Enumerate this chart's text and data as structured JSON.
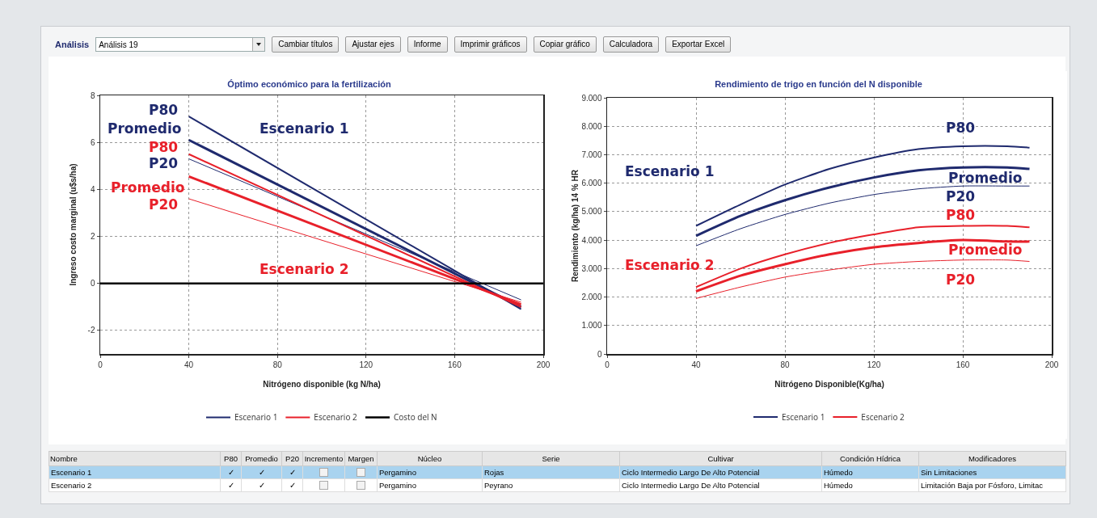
{
  "chart_data": [
    {
      "type": "other",
      "title": "Análisis",
      "annotations": [
        "Análisis 19",
        "Cambiar títulos",
        "Ajustar ejes",
        "Informe",
        "Imprimir gráficos",
        "Copiar gráfico",
        "Calculadora",
        "Exportar Excel"
      ]
    },
    {
      "type": "line",
      "title": "Óptimo económico para la fertilización",
      "xlabel": "Nitrógeno disponible (kg N/ha)",
      "ylabel": "Ingreso costo marginal (u$s/ha)",
      "xlim": [
        0,
        200
      ],
      "xticks": [
        0,
        40,
        80,
        120,
        160,
        200
      ],
      "ylim": [
        -3,
        8
      ],
      "yticks": [
        -2,
        0,
        2,
        4,
        6,
        8
      ],
      "grid": true,
      "legend": "bottom",
      "x": [
        40,
        190
      ],
      "series": [
        {
          "name": "Escenario 1",
          "color": "#1f2a6e",
          "values": [
            7.1,
            -1.1
          ]
        },
        {
          "color": "#1f2a6e",
          "values": [
            6.1,
            -1.0
          ]
        },
        {
          "color": "#1f2a6e",
          "values": [
            5.3,
            -0.7
          ]
        },
        {
          "name": "Escenario 2",
          "color": "#e8202a",
          "values": [
            5.5,
            -1.0
          ]
        },
        {
          "color": "#e8202a",
          "values": [
            4.55,
            -0.9
          ]
        },
        {
          "color": "#e8202a",
          "values": [
            3.6,
            -0.8
          ]
        },
        {
          "name": "Costo del N",
          "color": "#000000",
          "x": [
            0,
            200
          ],
          "values": [
            0,
            0
          ]
        }
      ],
      "annotations": [
        "P80",
        "Promedio",
        "P80",
        "P20",
        "Promedio",
        "P20",
        "Escenario 1",
        "Escenario 2"
      ]
    },
    {
      "type": "line",
      "title": "Rendimiento de trigo en función del N disponible",
      "xlabel": "Nitrógeno Disponible(Kg/ha)",
      "ylabel": "Rendimiento (kg/ha) 14 % HR",
      "xlim": [
        0,
        200
      ],
      "xticks": [
        0,
        40,
        80,
        120,
        160,
        200
      ],
      "ylim": [
        0,
        9000
      ],
      "yticks": [
        0,
        {
          "value": 1000,
          "label": "1.000"
        },
        {
          "value": 2000,
          "label": "2.000"
        },
        {
          "value": 3000,
          "label": "3.000"
        },
        {
          "value": 4000,
          "label": "4.000"
        },
        {
          "value": 5000,
          "label": "5.000"
        },
        {
          "value": 6000,
          "label": "6.000"
        },
        {
          "value": 7000,
          "label": "7.000"
        },
        {
          "value": 8000,
          "label": "8.000"
        },
        {
          "value": 9000,
          "label": "9.000"
        }
      ],
      "grid": true,
      "legend": "bottom",
      "x": [
        40,
        60,
        80,
        100,
        120,
        140,
        160,
        180,
        190
      ],
      "series": [
        {
          "name": "Escenario 1",
          "color": "#1f2a6e",
          "values": [
            4500,
            5250,
            5950,
            6500,
            6900,
            7200,
            7300,
            7300,
            7250
          ]
        },
        {
          "color": "#1f2a6e",
          "values": [
            4150,
            4850,
            5400,
            5850,
            6200,
            6450,
            6550,
            6550,
            6500
          ]
        },
        {
          "color": "#1f2a6e",
          "values": [
            3800,
            4400,
            4900,
            5300,
            5600,
            5800,
            5900,
            5900,
            5900
          ]
        },
        {
          "name": "Escenario 2",
          "color": "#e8202a",
          "values": [
            2350,
            3000,
            3500,
            3900,
            4200,
            4450,
            4500,
            4500,
            4450
          ]
        },
        {
          "color": "#e8202a",
          "values": [
            2200,
            2750,
            3150,
            3500,
            3750,
            3900,
            4000,
            3950,
            3950
          ]
        },
        {
          "color": "#e8202a",
          "values": [
            1950,
            2350,
            2700,
            2950,
            3150,
            3250,
            3300,
            3300,
            3250
          ]
        }
      ],
      "annotations": [
        "P80",
        "Promedio",
        "P20",
        "P80",
        "Promedio",
        "P20",
        "Escenario 1",
        "Escenario 2"
      ]
    },
    {
      "type": "other",
      "categories": [
        "Nombre",
        "P80",
        "Promedio",
        "P20",
        "Incremento",
        "Margen",
        "Núcleo",
        "Serie",
        "Cultivar",
        "Condición Hídrica",
        "Modificadores"
      ],
      "cell_labels": [
        [
          "Escenario 1",
          "✓",
          "✓",
          "✓",
          null,
          null,
          "Pergamino",
          "Rojas",
          "Ciclo Intermedio Largo De Alto Potencial",
          "Húmedo",
          "Sin Limitaciones"
        ],
        [
          "Escenario 2",
          "✓",
          "✓",
          "✓",
          null,
          null,
          "Pergamino",
          "Peyrano",
          "Ciclo Intermedio Largo De Alto Potencial",
          "Húmedo",
          "Limitación Baja por Fósforo, Limitac"
        ]
      ]
    }
  ]
}
